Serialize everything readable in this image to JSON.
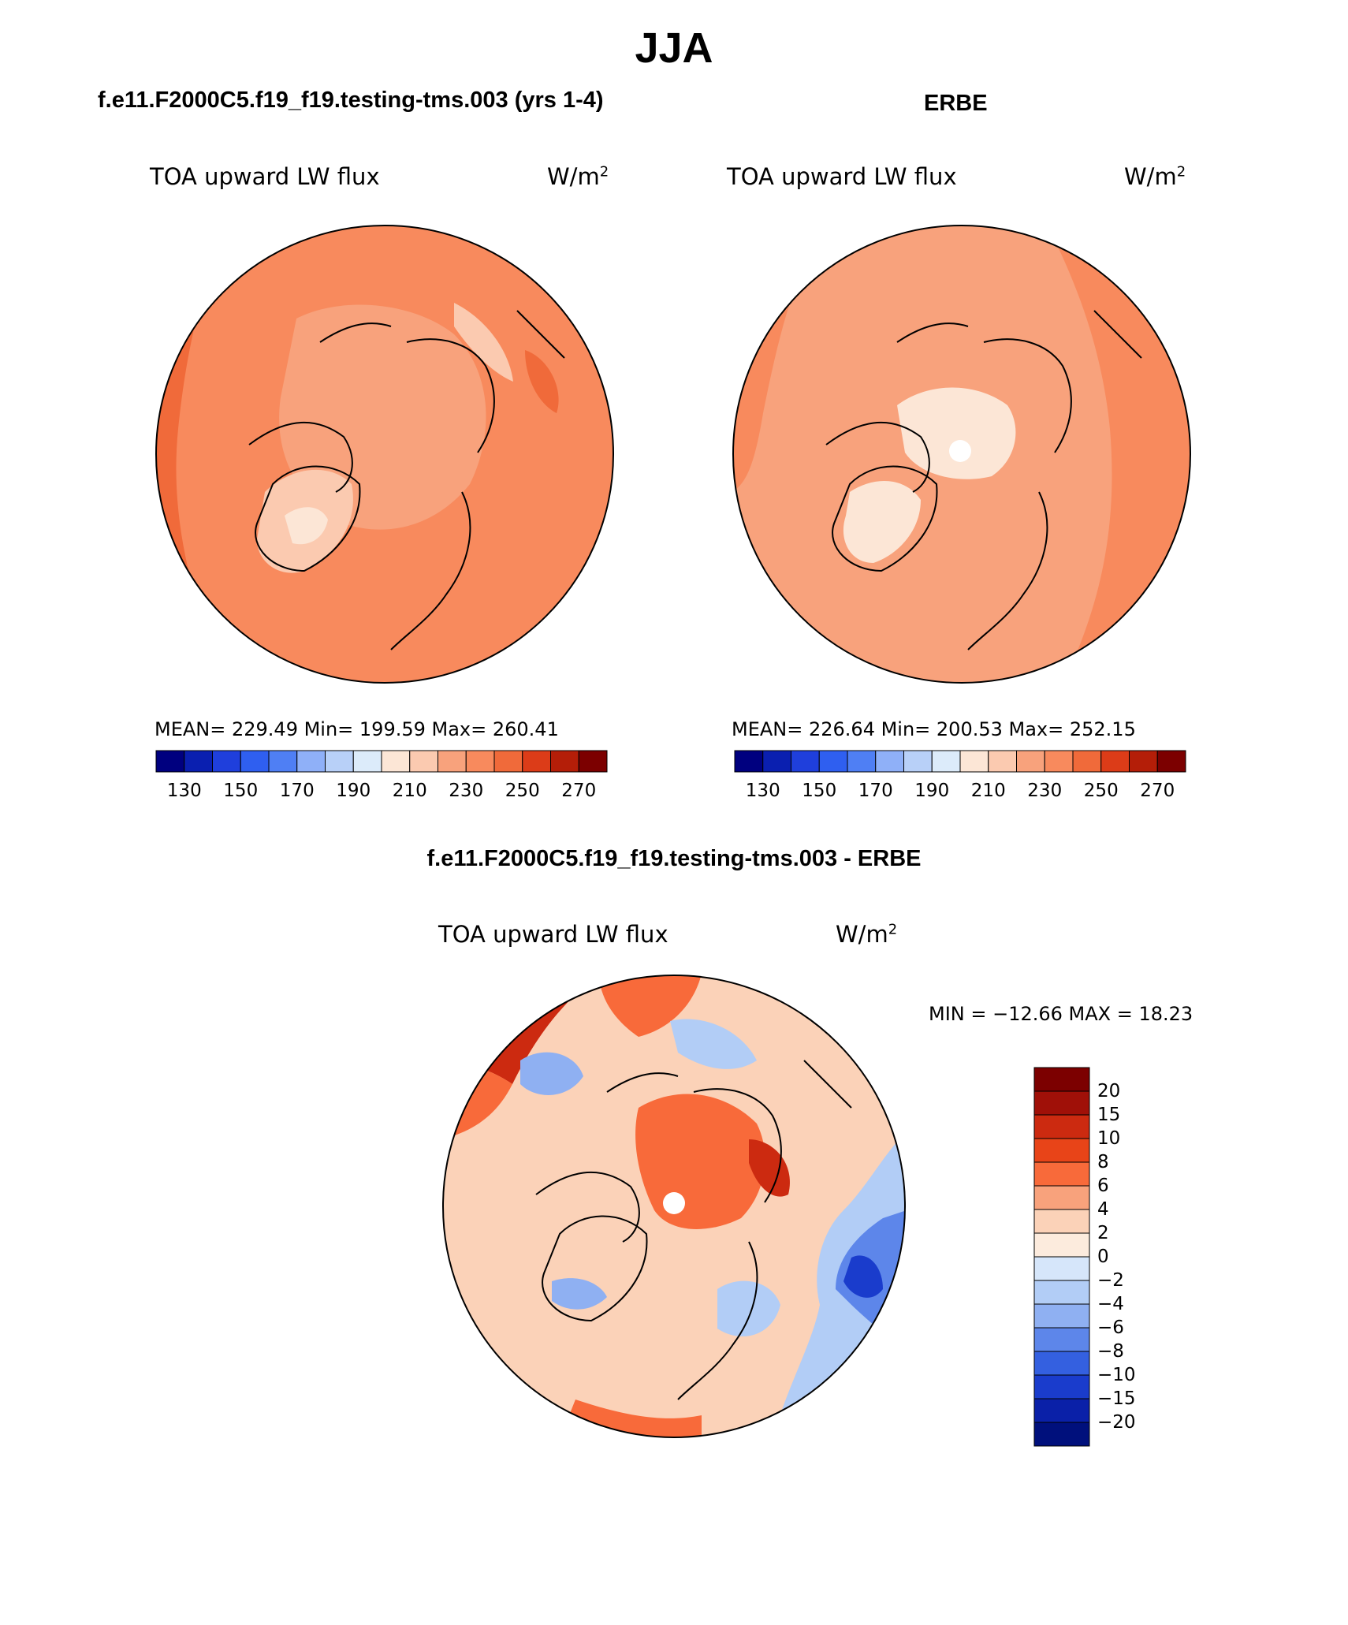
{
  "title": "JJA",
  "panels": [
    {
      "id": "model",
      "title": "f.e11.F2000C5.f19_f19.testing-tms.003 (yrs 1-4)",
      "left_label": "TOA upward LW flux",
      "units": "W/m",
      "units_sup": "2",
      "stats": "MEAN= 229.49   Min= 199.59   Max= 260.41",
      "base_color": "#f88a5d",
      "colorbar_ticks": [
        "130",
        "150",
        "170",
        "190",
        "210",
        "230",
        "250",
        "270"
      ]
    },
    {
      "id": "obs",
      "title": "ERBE",
      "left_label": "TOA upward LW flux",
      "units": "W/m",
      "units_sup": "2",
      "stats": "MEAN= 226.64   Min= 200.53   Max= 252.15",
      "base_color": "#f8a27c",
      "colorbar_ticks": [
        "130",
        "150",
        "170",
        "190",
        "210",
        "230",
        "250",
        "270"
      ]
    }
  ],
  "diff_panel": {
    "title": "f.e11.F2000C5.f19_f19.testing-tms.003 - ERBE",
    "left_label": "TOA upward LW flux",
    "units": "W/m",
    "units_sup": "2",
    "minmax": "MIN = −12.66 MAX =   18.23",
    "colorbar_ticks": [
      "20",
      "15",
      "10",
      "8",
      "6",
      "4",
      "2",
      "0",
      "−2",
      "−4",
      "−6",
      "−8",
      "−10",
      "−15",
      "−20"
    ]
  },
  "colors": {
    "abs_scale": [
      "#00007f",
      "#0a1fb0",
      "#1f3fdc",
      "#2f5ff0",
      "#4f7ff4",
      "#8fb0f8",
      "#b8d0f8",
      "#dcebfa",
      "#fce6d6",
      "#fbcab0",
      "#f8a27c",
      "#f88a5d",
      "#f06a3a",
      "#dc3c18",
      "#b41e08",
      "#7c0000"
    ],
    "diff_scale": [
      "#7c0000",
      "#a01008",
      "#cc2a10",
      "#e84418",
      "#f86a3a",
      "#f8a27c",
      "#fbd2b8",
      "#fcebdd",
      "#d6e6fa",
      "#b2cdf6",
      "#8fb0f2",
      "#5d86ea",
      "#3460e0",
      "#1a3ccc",
      "#0a20a8",
      "#00107c"
    ]
  }
}
